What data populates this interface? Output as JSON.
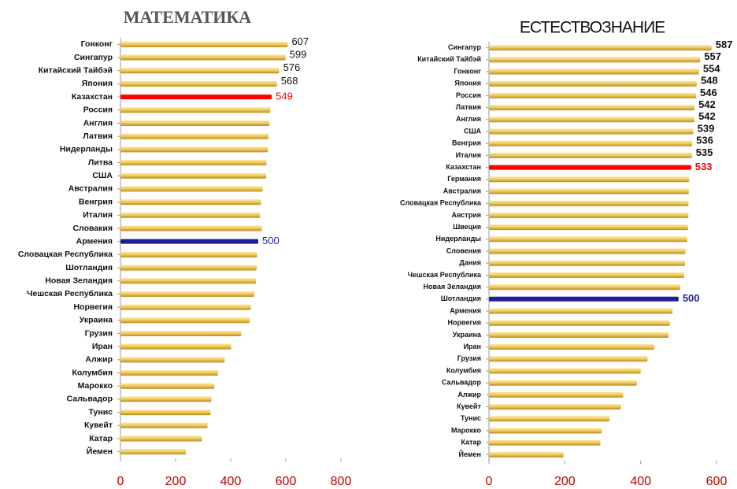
{
  "chart_data": [
    {
      "type": "bar",
      "orientation": "horizontal",
      "title": "МАТЕМАТИКА",
      "categories": [
        "Гонконг",
        "Сингапур",
        "Китайский Тайбэй",
        "Япония",
        "Казахстан",
        "Россия",
        "Англия",
        "Латвия",
        "Нидерланды",
        "Литва",
        "США",
        "Австралия",
        "Венгрия",
        "Италия",
        "Словакия",
        "Армения",
        "Словацкая Республика",
        "Шотландия",
        "Новая Зеландия",
        "Чешская Республика",
        "Норвегия",
        "Украина",
        "Грузия",
        "Иран",
        "Алжир",
        "Колумбия",
        "Марокко",
        "Сальвадор",
        "Тунис",
        "Кувейт",
        "Катар",
        "Йемен"
      ],
      "values": [
        607,
        599,
        576,
        568,
        549,
        544,
        541,
        537,
        535,
        530,
        529,
        516,
        510,
        507,
        513,
        500,
        496,
        494,
        492,
        486,
        473,
        469,
        438,
        402,
        378,
        355,
        341,
        330,
        327,
        316,
        296,
        238
      ],
      "value_labels": [
        "607",
        "599",
        "576",
        "568",
        "549",
        null,
        null,
        null,
        null,
        null,
        null,
        null,
        null,
        null,
        null,
        "500",
        null,
        null,
        null,
        null,
        null,
        null,
        null,
        null,
        null,
        null,
        null,
        null,
        null,
        null,
        null,
        null
      ],
      "color": "#f0c95a",
      "colors": [
        "#f0c95a",
        "#f0c95a",
        "#f0c95a",
        "#f0c95a",
        "#ff0000",
        "#f0c95a",
        "#f0c95a",
        "#f0c95a",
        "#f0c95a",
        "#f0c95a",
        "#f0c95a",
        "#f0c95a",
        "#f0c95a",
        "#f0c95a",
        "#f0c95a",
        "#1f1f9a",
        "#f0c95a",
        "#f0c95a",
        "#f0c95a",
        "#f0c95a",
        "#f0c95a",
        "#f0c95a",
        "#f0c95a",
        "#f0c95a",
        "#f0c95a",
        "#f0c95a",
        "#f0c95a",
        "#f0c95a",
        "#f0c95a",
        "#f0c95a",
        "#f0c95a",
        "#f0c95a"
      ],
      "xlim": [
        0,
        800
      ],
      "xticks": [
        0,
        200,
        400,
        600,
        800
      ]
    },
    {
      "type": "bar",
      "orientation": "horizontal",
      "title": "ЕСТЕСТВОЗНАНИЕ",
      "categories": [
        "Сингапур",
        "Китайский Тайбэй",
        "Гонконг",
        "Япония",
        "Россия",
        "Латвия",
        "Англия",
        "США",
        "Венгрия",
        "Италия",
        "Казахстан",
        "Германия",
        "Австралия",
        "Словацкая Республика",
        "Австрия",
        "Швеция",
        "Нидерланды",
        "Словения",
        "Дания",
        "Чешская Республика",
        "Новая Зеландия",
        "Шотландия",
        "Армения",
        "Норвегия",
        "Украина",
        "Иран",
        "Грузия",
        "Колумбия",
        "Сальвадор",
        "Алжир",
        "Кувейт",
        "Тунис",
        "Марокко",
        "Катар",
        "Йемен"
      ],
      "values": [
        587,
        557,
        554,
        548,
        546,
        542,
        542,
        539,
        536,
        535,
        533,
        528,
        527,
        526,
        526,
        525,
        523,
        518,
        517,
        515,
        504,
        500,
        484,
        477,
        474,
        436,
        418,
        400,
        390,
        354,
        348,
        318,
        297,
        294,
        197
      ],
      "value_labels": [
        "587",
        "557",
        "554",
        "548",
        "546",
        "542",
        "542",
        "539",
        "536",
        "535",
        "533",
        null,
        null,
        null,
        null,
        null,
        null,
        null,
        null,
        null,
        null,
        "500",
        null,
        null,
        null,
        null,
        null,
        null,
        null,
        null,
        null,
        null,
        null,
        null,
        null
      ],
      "color": "#f0c95a",
      "colors": [
        "#f0c95a",
        "#f0c95a",
        "#f0c95a",
        "#f0c95a",
        "#f0c95a",
        "#f0c95a",
        "#f0c95a",
        "#f0c95a",
        "#f0c95a",
        "#f0c95a",
        "#ff0000",
        "#f0c95a",
        "#f0c95a",
        "#f0c95a",
        "#f0c95a",
        "#f0c95a",
        "#f0c95a",
        "#f0c95a",
        "#f0c95a",
        "#f0c95a",
        "#f0c95a",
        "#1f1f9a",
        "#f0c95a",
        "#f0c95a",
        "#f0c95a",
        "#f0c95a",
        "#f0c95a",
        "#f0c95a",
        "#f0c95a",
        "#f0c95a",
        "#f0c95a",
        "#f0c95a",
        "#f0c95a",
        "#f0c95a",
        "#f0c95a"
      ],
      "xlim": [
        0,
        600
      ],
      "xticks": [
        0,
        200,
        400,
        600
      ]
    }
  ]
}
